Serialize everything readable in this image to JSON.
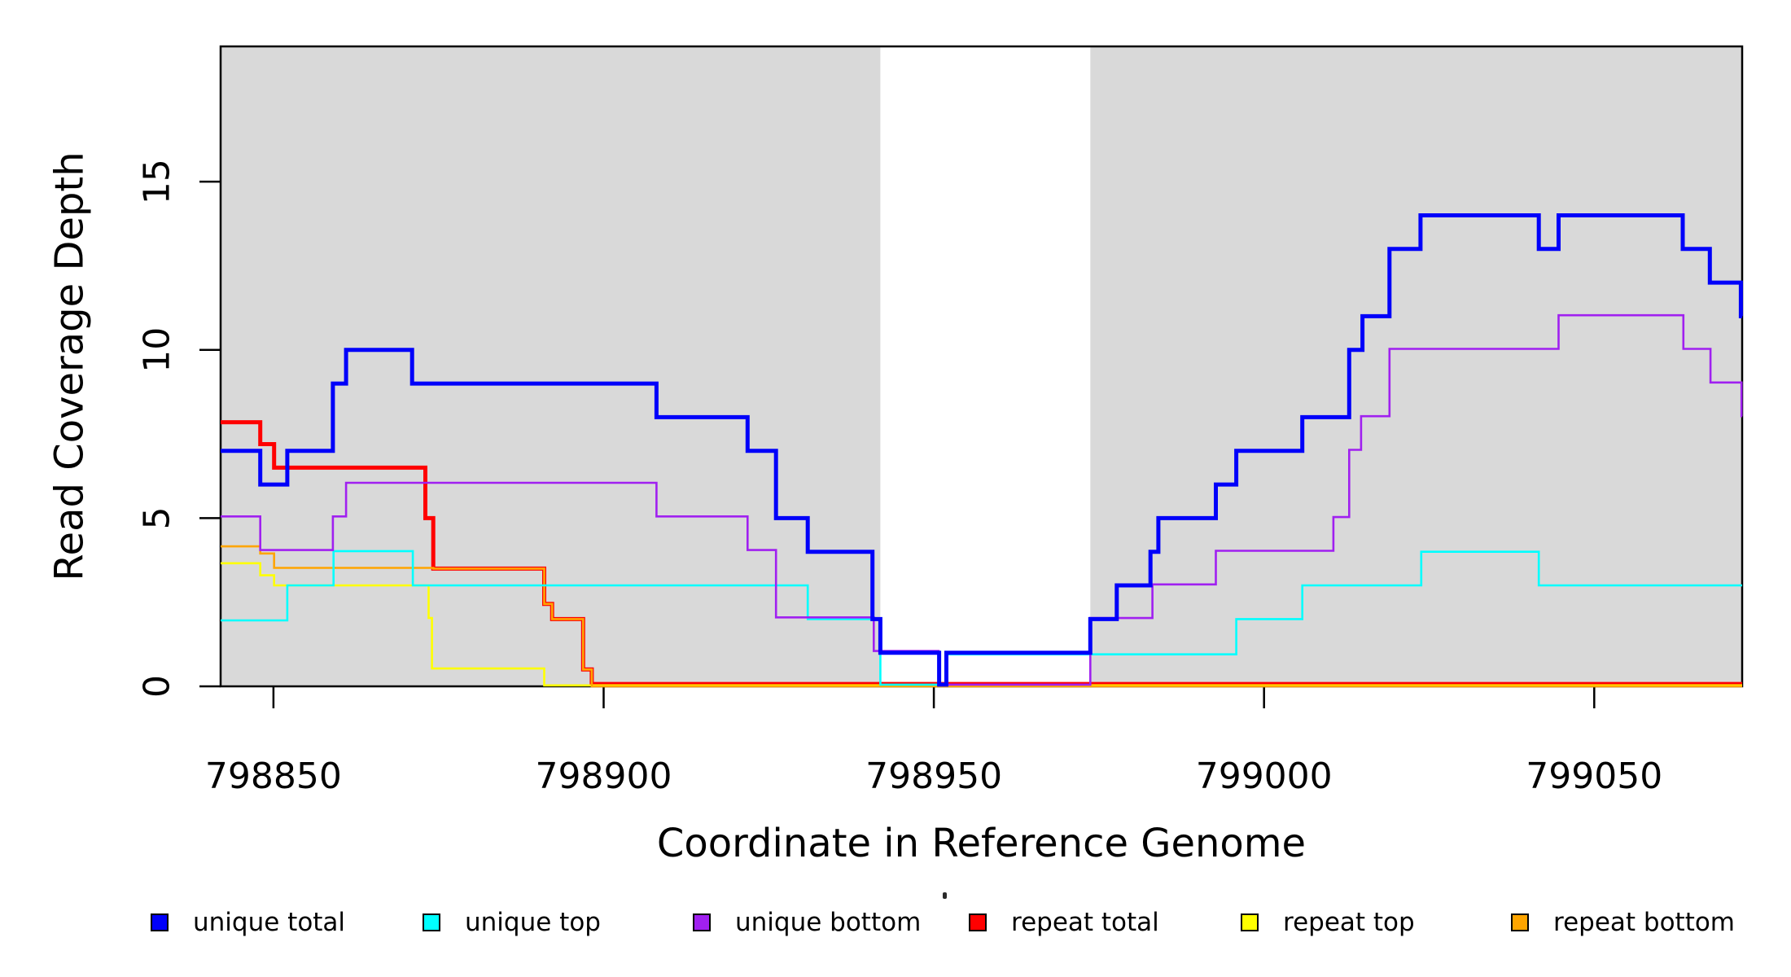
{
  "chart_data": {
    "type": "line",
    "subtype": "step",
    "title": "",
    "xlabel": "Coordinate in Reference Genome",
    "ylabel": "Read Coverage Depth",
    "xlim": [
      798842,
      799072.4
    ],
    "ylim": [
      0,
      19.02
    ],
    "grid": "off",
    "plot_bg": "#D9D9D9",
    "gap_bg": "#FFFFFF",
    "axis_color": "#000000",
    "gap_region": {
      "x_start": 798941.9,
      "x_end": 798973.7
    },
    "x_ticks": [
      {
        "value": 798850,
        "label": "798850"
      },
      {
        "value": 798900,
        "label": "798900"
      },
      {
        "value": 798950,
        "label": "798950"
      },
      {
        "value": 799000,
        "label": "799000"
      },
      {
        "value": 799050,
        "label": "799050"
      }
    ],
    "y_ticks": [
      {
        "value": 0,
        "label": "0"
      },
      {
        "value": 5,
        "label": "5"
      },
      {
        "value": 10,
        "label": "10"
      },
      {
        "value": 15,
        "label": "15"
      }
    ],
    "series": [
      {
        "name": "repeat total",
        "color": "#FF0000",
        "width": 5,
        "steps": [
          [
            798842,
            7.85
          ],
          [
            798848,
            7.2
          ],
          [
            798850.1,
            6.5
          ],
          [
            798873,
            5
          ],
          [
            798874.2,
            3.5
          ],
          [
            798891,
            2.45
          ],
          [
            798892.2,
            2
          ],
          [
            798896.9,
            0.5
          ],
          [
            798898.2,
            0.07
          ]
        ]
      },
      {
        "name": "repeat top",
        "color": "#FFFF00",
        "width": 2.6,
        "steps": [
          [
            798842,
            3.66
          ],
          [
            798848,
            3.3
          ],
          [
            798850.1,
            3
          ],
          [
            798873.5,
            2.03
          ],
          [
            798874,
            0.53
          ],
          [
            798891,
            0.03
          ]
        ]
      },
      {
        "name": "repeat bottom",
        "color": "#FFA500",
        "width": 2.6,
        "steps": [
          [
            798842,
            4.16
          ],
          [
            798848,
            3.95
          ],
          [
            798850.1,
            3.52
          ],
          [
            798874.2,
            3.5
          ],
          [
            798891,
            2.45
          ],
          [
            798892.2,
            2
          ],
          [
            798896.9,
            0.5
          ],
          [
            798898.2,
            0
          ]
        ]
      },
      {
        "name": "unique top",
        "color": "#00FFFF",
        "width": 2.6,
        "steps": [
          [
            798842,
            1.96
          ],
          [
            798852.1,
            3
          ],
          [
            798859.1,
            4.02
          ],
          [
            798871.1,
            3
          ],
          [
            798930.9,
            2
          ],
          [
            798941.9,
            0.05
          ],
          [
            798952,
            0.95
          ],
          [
            798995.8,
            2
          ],
          [
            799005.8,
            3
          ],
          [
            799023.8,
            4
          ],
          [
            799041.6,
            3
          ]
        ]
      },
      {
        "name": "unique bottom",
        "color": "#A020F0",
        "width": 2.6,
        "steps": [
          [
            798842,
            5.05
          ],
          [
            798848,
            4.05
          ],
          [
            798859,
            5.05
          ],
          [
            798861,
            6.05
          ],
          [
            798908,
            5.05
          ],
          [
            798921.8,
            4.05
          ],
          [
            798926.1,
            2.05
          ],
          [
            798940.9,
            1.05
          ],
          [
            798950.7,
            0.05
          ],
          [
            798973.7,
            2.03
          ],
          [
            798983.1,
            3.03
          ],
          [
            798992.7,
            4.03
          ],
          [
            799010.5,
            5.03
          ],
          [
            799012.9,
            7.03
          ],
          [
            799014.7,
            8.03
          ],
          [
            799019,
            10.03
          ],
          [
            799044.6,
            11.03
          ],
          [
            799063.5,
            10.03
          ],
          [
            799067.6,
            9.03
          ],
          [
            799072.3,
            8.03
          ]
        ]
      },
      {
        "name": "unique total",
        "color": "#0000FA",
        "width": 5,
        "steps": [
          [
            798842,
            7
          ],
          [
            798848,
            6
          ],
          [
            798852.1,
            7
          ],
          [
            798859,
            9
          ],
          [
            798861,
            10
          ],
          [
            798871,
            9
          ],
          [
            798908,
            8
          ],
          [
            798921.8,
            7
          ],
          [
            798926.1,
            5
          ],
          [
            798930.9,
            4
          ],
          [
            798940.7,
            2
          ],
          [
            798941.9,
            1
          ],
          [
            798950.8,
            0.05
          ],
          [
            798951.9,
            1
          ],
          [
            798973.7,
            2
          ],
          [
            798977.7,
            3
          ],
          [
            798982.8,
            4
          ],
          [
            798984,
            5
          ],
          [
            798992.7,
            6
          ],
          [
            798995.8,
            7
          ],
          [
            799005.8,
            8
          ],
          [
            799012.9,
            10
          ],
          [
            799014.9,
            11
          ],
          [
            799019,
            13
          ],
          [
            799023.7,
            14
          ],
          [
            799041.6,
            13
          ],
          [
            799044.6,
            14
          ],
          [
            799063.4,
            13
          ],
          [
            799067.5,
            12
          ],
          [
            799072.2,
            11
          ]
        ]
      }
    ]
  },
  "legend": {
    "items": [
      {
        "label": "unique total",
        "color": "#0000FA"
      },
      {
        "label": "unique top",
        "color": "#00FFFF"
      },
      {
        "label": "unique bottom",
        "color": "#A020F0"
      },
      {
        "label": "repeat total",
        "color": "#FF0000"
      },
      {
        "label": "repeat top",
        "color": "#FFFF00"
      },
      {
        "label": "repeat bottom",
        "color": "#FFA500"
      }
    ]
  }
}
